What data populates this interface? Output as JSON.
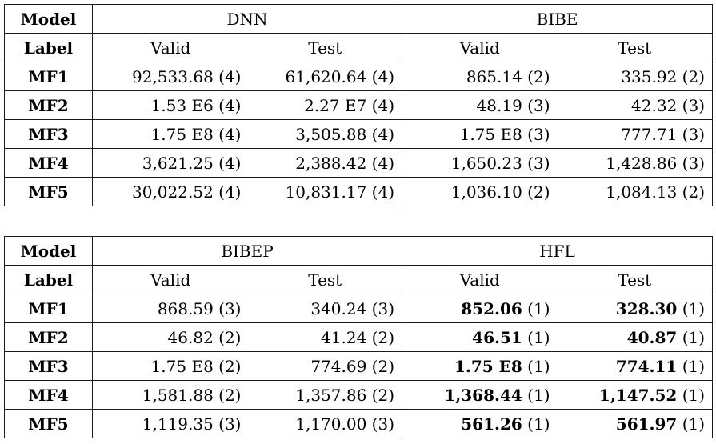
{
  "page": {
    "background_color": "#ffffff",
    "text_color": "#000000",
    "border_color": "#1b1b1b"
  },
  "tables": [
    {
      "model_header": "Model",
      "label_header": "Label",
      "groups": [
        {
          "name": "DNN",
          "valid_header": "Valid",
          "test_header": "Test"
        },
        {
          "name": "BIBE",
          "valid_header": "Valid",
          "test_header": "Test"
        }
      ],
      "rows": [
        {
          "label": "MF1",
          "cells": [
            {
              "value": "92,533.68",
              "rank": "(4)",
              "bold": false
            },
            {
              "value": "61,620.64",
              "rank": "(4)",
              "bold": false
            },
            {
              "value": "865.14",
              "rank": "(2)",
              "bold": false
            },
            {
              "value": "335.92",
              "rank": "(2)",
              "bold": false
            }
          ]
        },
        {
          "label": "MF2",
          "cells": [
            {
              "value": "1.53 E6",
              "rank": "(4)",
              "bold": false
            },
            {
              "value": "2.27 E7",
              "rank": "(4)",
              "bold": false
            },
            {
              "value": "48.19",
              "rank": "(3)",
              "bold": false
            },
            {
              "value": "42.32",
              "rank": "(3)",
              "bold": false
            }
          ]
        },
        {
          "label": "MF3",
          "cells": [
            {
              "value": "1.75 E8",
              "rank": "(4)",
              "bold": false
            },
            {
              "value": "3,505.88",
              "rank": "(4)",
              "bold": false
            },
            {
              "value": "1.75 E8",
              "rank": "(3)",
              "bold": false
            },
            {
              "value": "777.71",
              "rank": "(3)",
              "bold": false
            }
          ]
        },
        {
          "label": "MF4",
          "cells": [
            {
              "value": "3,621.25",
              "rank": "(4)",
              "bold": false
            },
            {
              "value": "2,388.42",
              "rank": "(4)",
              "bold": false
            },
            {
              "value": "1,650.23",
              "rank": "(3)",
              "bold": false
            },
            {
              "value": "1,428.86",
              "rank": "(3)",
              "bold": false
            }
          ]
        },
        {
          "label": "MF5",
          "cells": [
            {
              "value": "30,022.52",
              "rank": "(4)",
              "bold": false
            },
            {
              "value": "10,831.17",
              "rank": "(4)",
              "bold": false
            },
            {
              "value": "1,036.10",
              "rank": "(2)",
              "bold": false
            },
            {
              "value": "1,084.13",
              "rank": "(2)",
              "bold": false
            }
          ]
        }
      ]
    },
    {
      "model_header": "Model",
      "label_header": "Label",
      "groups": [
        {
          "name": "BIBEP",
          "valid_header": "Valid",
          "test_header": "Test"
        },
        {
          "name": "HFL",
          "valid_header": "Valid",
          "test_header": "Test"
        }
      ],
      "rows": [
        {
          "label": "MF1",
          "cells": [
            {
              "value": "868.59",
              "rank": "(3)",
              "bold": false
            },
            {
              "value": "340.24",
              "rank": "(3)",
              "bold": false
            },
            {
              "value": "852.06",
              "rank": "(1)",
              "bold": true
            },
            {
              "value": "328.30",
              "rank": "(1)",
              "bold": true
            }
          ]
        },
        {
          "label": "MF2",
          "cells": [
            {
              "value": "46.82",
              "rank": "(2)",
              "bold": false
            },
            {
              "value": "41.24",
              "rank": "(2)",
              "bold": false
            },
            {
              "value": "46.51",
              "rank": "(1)",
              "bold": true
            },
            {
              "value": "40.87",
              "rank": "(1)",
              "bold": true
            }
          ]
        },
        {
          "label": "MF3",
          "cells": [
            {
              "value": "1.75 E8",
              "rank": "(2)",
              "bold": false
            },
            {
              "value": "774.69",
              "rank": "(2)",
              "bold": false
            },
            {
              "value": "1.75 E8",
              "rank": "(1)",
              "bold": true
            },
            {
              "value": "774.11",
              "rank": "(1)",
              "bold": true
            }
          ]
        },
        {
          "label": "MF4",
          "cells": [
            {
              "value": "1,581.88",
              "rank": "(2)",
              "bold": false
            },
            {
              "value": "1,357.86",
              "rank": "(2)",
              "bold": false
            },
            {
              "value": "1,368.44",
              "rank": "(1)",
              "bold": true
            },
            {
              "value": "1,147.52",
              "rank": "(1)",
              "bold": true
            }
          ]
        },
        {
          "label": "MF5",
          "cells": [
            {
              "value": "1,119.35",
              "rank": "(3)",
              "bold": false
            },
            {
              "value": "1,170.00",
              "rank": "(3)",
              "bold": false
            },
            {
              "value": "561.26",
              "rank": "(1)",
              "bold": true
            },
            {
              "value": "561.97",
              "rank": "(1)",
              "bold": true
            }
          ]
        }
      ]
    }
  ]
}
